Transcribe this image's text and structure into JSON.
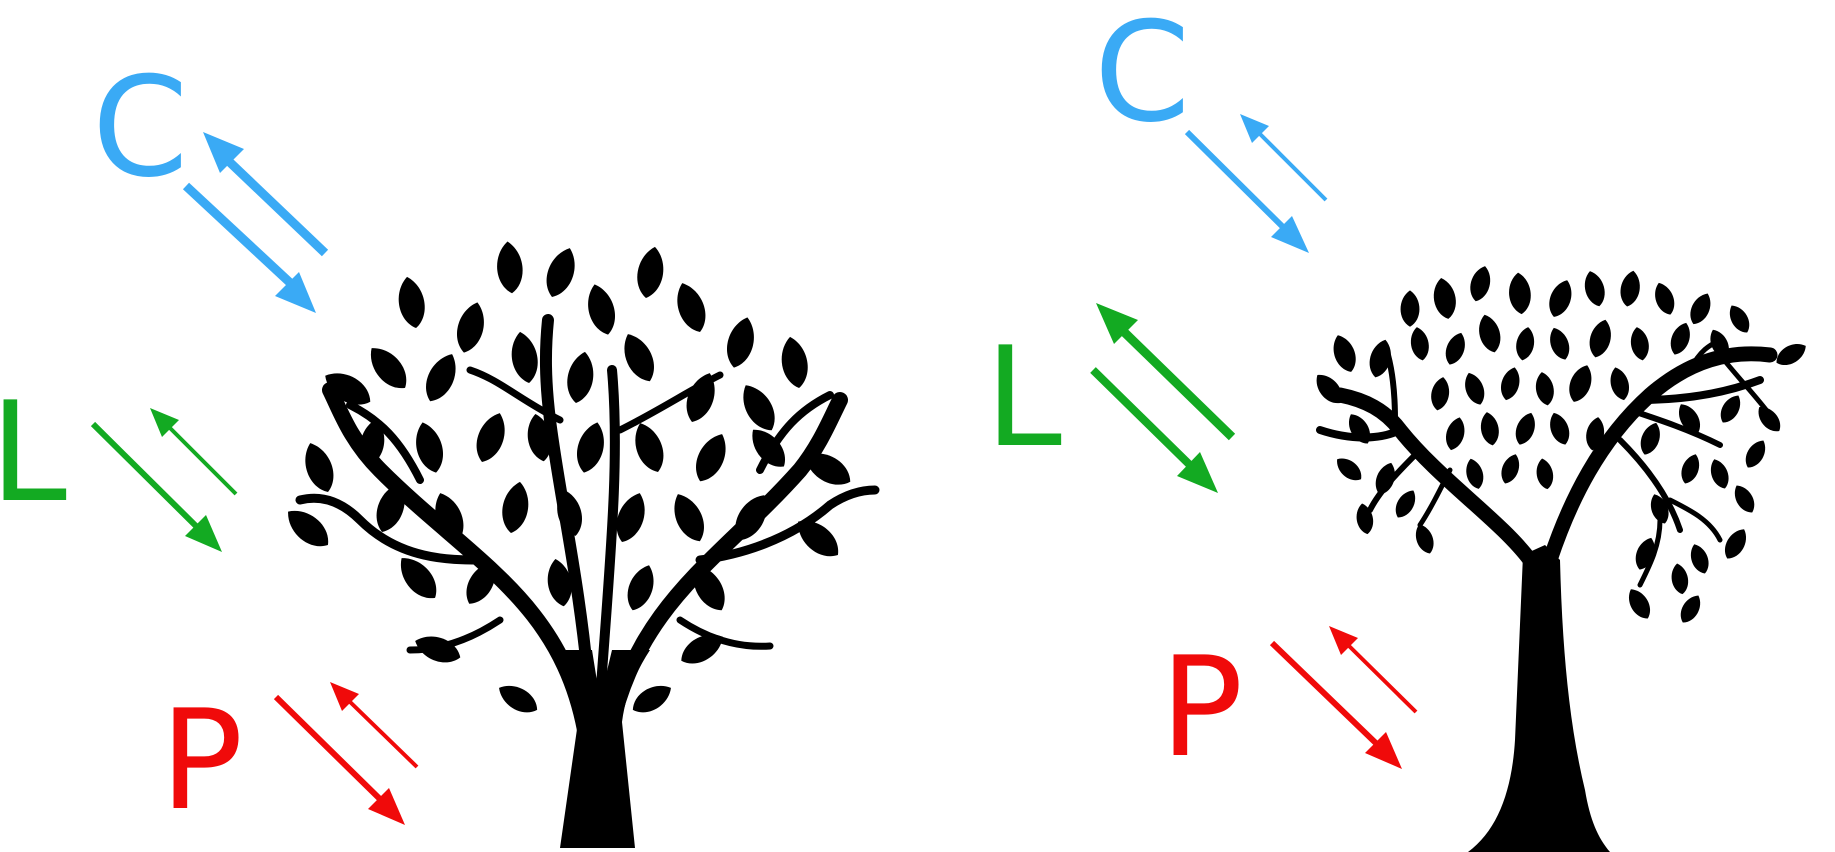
{
  "colors": {
    "C": "#3aaaf5",
    "L": "#13aa22",
    "P": "#f00a0a",
    "tree": "#000000"
  },
  "left_panel": {
    "labels": {
      "C": "C",
      "L": "L",
      "P": "P"
    },
    "tree_icon": "bushy-tree-silhouette-icon"
  },
  "right_panel": {
    "labels": {
      "C": "C",
      "L": "L",
      "P": "P"
    },
    "tree_icon": "tall-tree-silhouette-icon"
  }
}
